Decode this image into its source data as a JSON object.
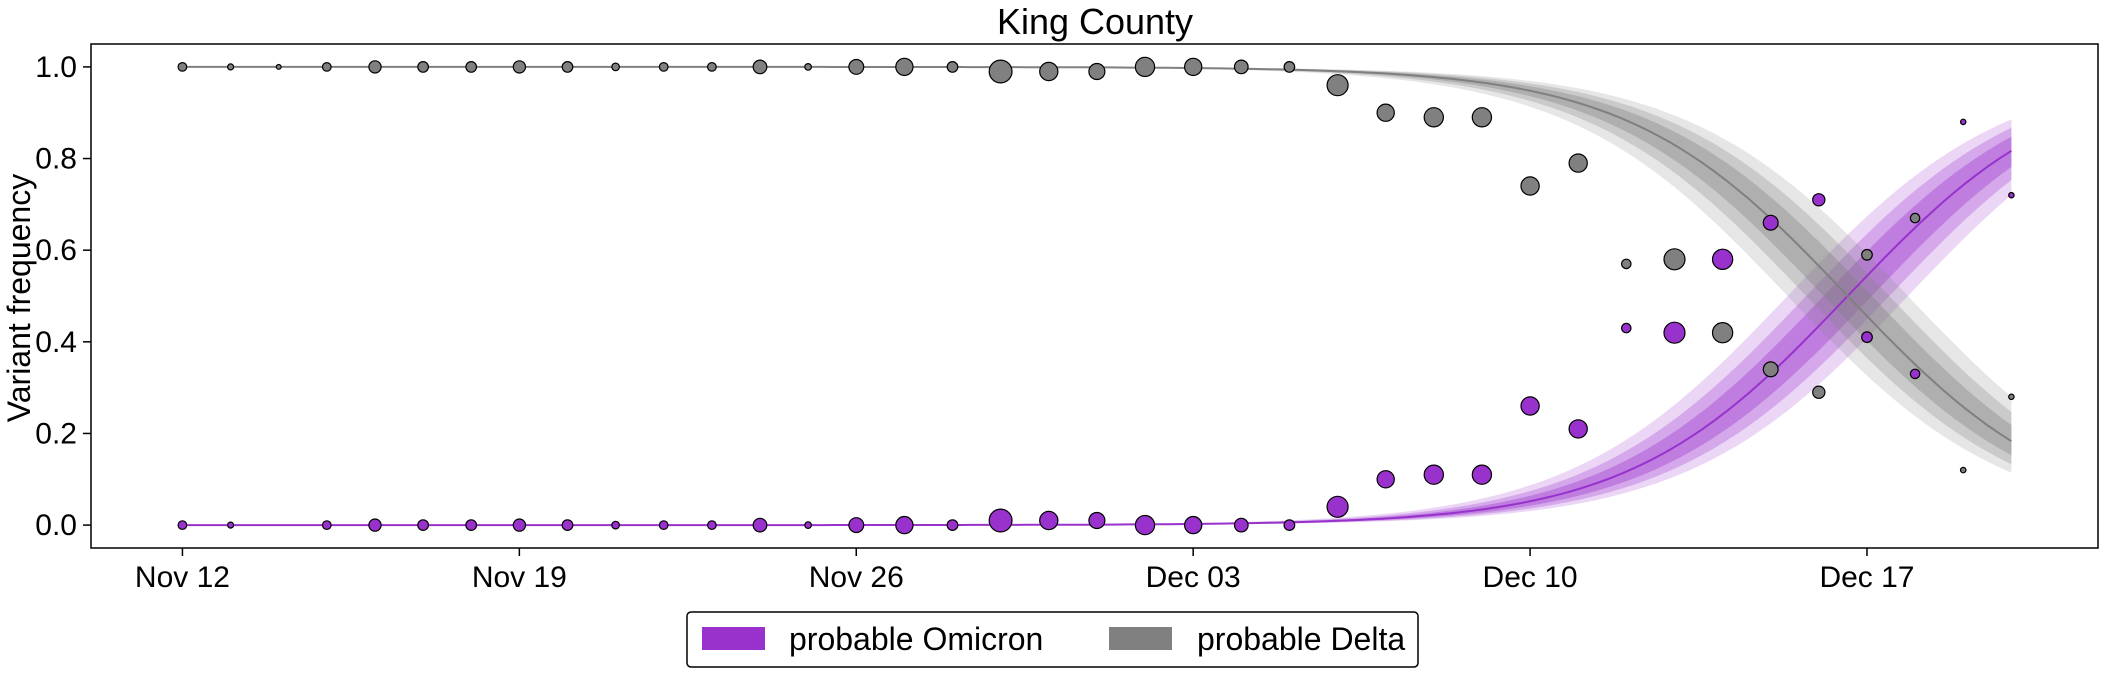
{
  "chart_data": {
    "type": "scatter",
    "title": "King County",
    "xlabel": "",
    "ylabel": "Variant frequency",
    "x_tick_labels": [
      "Nov 12",
      "Nov 19",
      "Nov 26",
      "Dec 03",
      "Dec 10",
      "Dec 17"
    ],
    "x_tick_days": [
      0,
      7,
      14,
      21,
      28,
      35
    ],
    "x_range_days": [
      -1.9,
      39.8
    ],
    "x_origin_date": "2021-11-12",
    "ylim": [
      -0.05,
      1.05
    ],
    "y_ticks": [
      0.0,
      0.2,
      0.4,
      0.6,
      0.8,
      1.0
    ],
    "legend_placement": "bottom-center, outside plot",
    "grid": false,
    "fit_model": {
      "type": "logistic",
      "midpoint_day": 34.6,
      "growth_rate_per_day": 0.44,
      "band_half_widths_logit": [
        0.22,
        0.38,
        0.55
      ],
      "x_range_days": [
        0,
        38
      ]
    },
    "series": [
      {
        "name": "probable Omicron",
        "color": "#9932CC",
        "points": [
          {
            "x": 0,
            "y": 0.0,
            "n": 1
          },
          {
            "x": 1,
            "y": 0.0,
            "n": 0.5
          },
          {
            "x": 3,
            "y": 0.0,
            "n": 1
          },
          {
            "x": 4,
            "y": 0.0,
            "n": 2
          },
          {
            "x": 5,
            "y": 0.0,
            "n": 1.5
          },
          {
            "x": 6,
            "y": 0.0,
            "n": 1.5
          },
          {
            "x": 7,
            "y": 0.0,
            "n": 2
          },
          {
            "x": 8,
            "y": 0.0,
            "n": 1.5
          },
          {
            "x": 9,
            "y": 0.0,
            "n": 0.8
          },
          {
            "x": 10,
            "y": 0.0,
            "n": 1
          },
          {
            "x": 11,
            "y": 0.0,
            "n": 1
          },
          {
            "x": 12,
            "y": 0.0,
            "n": 2.5
          },
          {
            "x": 13,
            "y": 0.0,
            "n": 0.6
          },
          {
            "x": 14,
            "y": 0.0,
            "n": 3
          },
          {
            "x": 15,
            "y": 0.0,
            "n": 4
          },
          {
            "x": 16,
            "y": 0.0,
            "n": 1.5
          },
          {
            "x": 17,
            "y": 0.01,
            "n": 7
          },
          {
            "x": 18,
            "y": 0.01,
            "n": 4.5
          },
          {
            "x": 19,
            "y": 0.01,
            "n": 3.5
          },
          {
            "x": 20,
            "y": 0.0,
            "n": 5
          },
          {
            "x": 21,
            "y": 0.0,
            "n": 4
          },
          {
            "x": 22,
            "y": 0.0,
            "n": 2.5
          },
          {
            "x": 23,
            "y": 0.0,
            "n": 1.5
          },
          {
            "x": 24,
            "y": 0.04,
            "n": 6
          },
          {
            "x": 25,
            "y": 0.1,
            "n": 4
          },
          {
            "x": 26,
            "y": 0.11,
            "n": 5
          },
          {
            "x": 27,
            "y": 0.11,
            "n": 5
          },
          {
            "x": 28,
            "y": 0.26,
            "n": 4.5
          },
          {
            "x": 29,
            "y": 0.21,
            "n": 4.5
          },
          {
            "x": 30,
            "y": 0.43,
            "n": 1.2
          },
          {
            "x": 31,
            "y": 0.42,
            "n": 6
          },
          {
            "x": 32,
            "y": 0.58,
            "n": 5.5
          },
          {
            "x": 33,
            "y": 0.66,
            "n": 3
          },
          {
            "x": 34,
            "y": 0.71,
            "n": 2
          },
          {
            "x": 35,
            "y": 0.41,
            "n": 1.5
          },
          {
            "x": 36,
            "y": 0.33,
            "n": 1.2
          },
          {
            "x": 37,
            "y": 0.88,
            "n": 0.4
          },
          {
            "x": 38,
            "y": 0.72,
            "n": 0.4
          }
        ]
      },
      {
        "name": "probable Delta",
        "color": "#808080",
        "points": [
          {
            "x": 0,
            "y": 1.0,
            "n": 1
          },
          {
            "x": 1,
            "y": 1.0,
            "n": 0.5
          },
          {
            "x": 2,
            "y": 1.0,
            "n": 0.3
          },
          {
            "x": 3,
            "y": 1.0,
            "n": 1
          },
          {
            "x": 4,
            "y": 1.0,
            "n": 2
          },
          {
            "x": 5,
            "y": 1.0,
            "n": 1.5
          },
          {
            "x": 6,
            "y": 1.0,
            "n": 1.5
          },
          {
            "x": 7,
            "y": 1.0,
            "n": 2
          },
          {
            "x": 8,
            "y": 1.0,
            "n": 1.5
          },
          {
            "x": 9,
            "y": 1.0,
            "n": 0.8
          },
          {
            "x": 10,
            "y": 1.0,
            "n": 1
          },
          {
            "x": 11,
            "y": 1.0,
            "n": 1
          },
          {
            "x": 12,
            "y": 1.0,
            "n": 2.5
          },
          {
            "x": 13,
            "y": 1.0,
            "n": 0.6
          },
          {
            "x": 14,
            "y": 1.0,
            "n": 3
          },
          {
            "x": 15,
            "y": 1.0,
            "n": 4
          },
          {
            "x": 16,
            "y": 1.0,
            "n": 1.5
          },
          {
            "x": 17,
            "y": 0.99,
            "n": 7
          },
          {
            "x": 18,
            "y": 0.99,
            "n": 4.5
          },
          {
            "x": 19,
            "y": 0.99,
            "n": 3.5
          },
          {
            "x": 20,
            "y": 1.0,
            "n": 5
          },
          {
            "x": 21,
            "y": 1.0,
            "n": 4
          },
          {
            "x": 22,
            "y": 1.0,
            "n": 2.5
          },
          {
            "x": 23,
            "y": 1.0,
            "n": 1.5
          },
          {
            "x": 24,
            "y": 0.96,
            "n": 6
          },
          {
            "x": 25,
            "y": 0.9,
            "n": 4
          },
          {
            "x": 26,
            "y": 0.89,
            "n": 5
          },
          {
            "x": 27,
            "y": 0.89,
            "n": 5
          },
          {
            "x": 28,
            "y": 0.74,
            "n": 4.5
          },
          {
            "x": 29,
            "y": 0.79,
            "n": 4.5
          },
          {
            "x": 30,
            "y": 0.57,
            "n": 1.2
          },
          {
            "x": 31,
            "y": 0.58,
            "n": 6
          },
          {
            "x": 32,
            "y": 0.42,
            "n": 5.5
          },
          {
            "x": 33,
            "y": 0.34,
            "n": 3
          },
          {
            "x": 34,
            "y": 0.29,
            "n": 2
          },
          {
            "x": 35,
            "y": 0.59,
            "n": 1.5
          },
          {
            "x": 36,
            "y": 0.67,
            "n": 1.2
          },
          {
            "x": 37,
            "y": 0.12,
            "n": 0.4
          },
          {
            "x": 38,
            "y": 0.28,
            "n": 0.4
          }
        ]
      }
    ]
  }
}
